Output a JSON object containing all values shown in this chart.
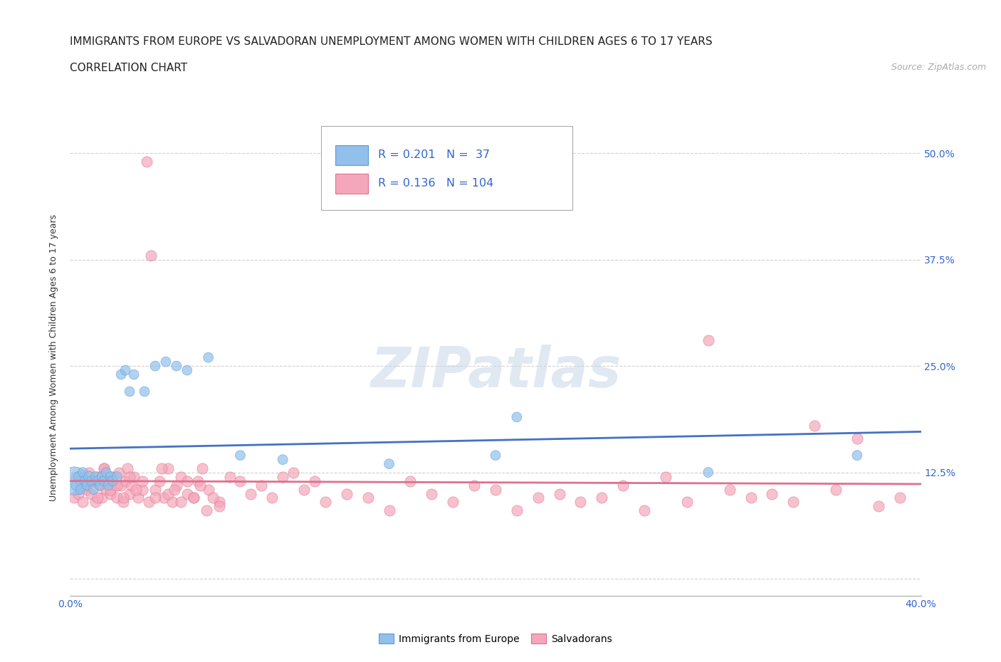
{
  "title_line1": "IMMIGRANTS FROM EUROPE VS SALVADORAN UNEMPLOYMENT AMONG WOMEN WITH CHILDREN AGES 6 TO 17 YEARS",
  "title_line2": "CORRELATION CHART",
  "source_text": "Source: ZipAtlas.com",
  "ylabel": "Unemployment Among Women with Children Ages 6 to 17 years",
  "xlim": [
    0.0,
    0.4
  ],
  "ylim": [
    -0.02,
    0.54
  ],
  "yticks": [
    0.0,
    0.125,
    0.25,
    0.375,
    0.5
  ],
  "ytick_labels": [
    "",
    "12.5%",
    "25.0%",
    "37.5%",
    "50.0%"
  ],
  "xticks": [
    0.0,
    0.05,
    0.1,
    0.15,
    0.2,
    0.25,
    0.3,
    0.35,
    0.4
  ],
  "xtick_labels": [
    "0.0%",
    "",
    "",
    "",
    "",
    "",
    "",
    "",
    "40.0%"
  ],
  "blue_color": "#91C0EA",
  "pink_color": "#F4A7BA",
  "blue_edge_color": "#5B9BD5",
  "pink_edge_color": "#E07090",
  "blue_line_color": "#4472C4",
  "pink_line_color": "#E07090",
  "R_blue": 0.201,
  "N_blue": 37,
  "R_pink": 0.136,
  "N_pink": 104,
  "legend_label_blue": "Immigrants from Europe",
  "legend_label_pink": "Salvadorans",
  "watermark": "ZIPatlas",
  "grid_color": "#CCCCCC",
  "background_color": "#FFFFFF",
  "blue_scatter_x": [
    0.002,
    0.003,
    0.004,
    0.005,
    0.006,
    0.007,
    0.008,
    0.009,
    0.01,
    0.011,
    0.012,
    0.013,
    0.014,
    0.015,
    0.016,
    0.017,
    0.018,
    0.019,
    0.02,
    0.022,
    0.024,
    0.026,
    0.028,
    0.03,
    0.035,
    0.04,
    0.045,
    0.05,
    0.055,
    0.065,
    0.08,
    0.1,
    0.15,
    0.2,
    0.21,
    0.3,
    0.37
  ],
  "blue_scatter_y": [
    0.115,
    0.11,
    0.12,
    0.105,
    0.125,
    0.115,
    0.11,
    0.12,
    0.115,
    0.105,
    0.12,
    0.115,
    0.11,
    0.12,
    0.115,
    0.125,
    0.11,
    0.12,
    0.115,
    0.12,
    0.24,
    0.245,
    0.22,
    0.24,
    0.22,
    0.25,
    0.255,
    0.25,
    0.245,
    0.26,
    0.145,
    0.14,
    0.135,
    0.145,
    0.19,
    0.125,
    0.145
  ],
  "blue_scatter_size": [
    800,
    120,
    100,
    100,
    100,
    100,
    100,
    120,
    100,
    100,
    100,
    100,
    100,
    100,
    100,
    100,
    100,
    100,
    100,
    100,
    100,
    100,
    100,
    100,
    100,
    100,
    100,
    100,
    100,
    100,
    100,
    100,
    100,
    100,
    100,
    100,
    100
  ],
  "pink_scatter_x": [
    0.002,
    0.003,
    0.004,
    0.005,
    0.006,
    0.007,
    0.008,
    0.009,
    0.01,
    0.011,
    0.012,
    0.013,
    0.014,
    0.015,
    0.016,
    0.017,
    0.018,
    0.019,
    0.02,
    0.021,
    0.022,
    0.023,
    0.024,
    0.025,
    0.026,
    0.027,
    0.028,
    0.029,
    0.03,
    0.032,
    0.034,
    0.036,
    0.038,
    0.04,
    0.042,
    0.044,
    0.046,
    0.048,
    0.05,
    0.052,
    0.055,
    0.058,
    0.06,
    0.062,
    0.065,
    0.07,
    0.075,
    0.08,
    0.085,
    0.09,
    0.095,
    0.1,
    0.105,
    0.11,
    0.115,
    0.12,
    0.13,
    0.14,
    0.15,
    0.16,
    0.17,
    0.18,
    0.19,
    0.2,
    0.21,
    0.22,
    0.23,
    0.24,
    0.25,
    0.26,
    0.27,
    0.28,
    0.29,
    0.3,
    0.31,
    0.32,
    0.33,
    0.34,
    0.35,
    0.36,
    0.37,
    0.38,
    0.39,
    0.01,
    0.013,
    0.016,
    0.019,
    0.022,
    0.025,
    0.028,
    0.031,
    0.034,
    0.037,
    0.04,
    0.043,
    0.046,
    0.049,
    0.052,
    0.055,
    0.058,
    0.061,
    0.064,
    0.067,
    0.07
  ],
  "pink_scatter_y": [
    0.095,
    0.12,
    0.1,
    0.115,
    0.09,
    0.11,
    0.105,
    0.125,
    0.1,
    0.115,
    0.09,
    0.12,
    0.11,
    0.095,
    0.13,
    0.105,
    0.115,
    0.1,
    0.12,
    0.11,
    0.095,
    0.125,
    0.11,
    0.09,
    0.115,
    0.13,
    0.1,
    0.11,
    0.12,
    0.095,
    0.105,
    0.49,
    0.38,
    0.105,
    0.115,
    0.095,
    0.13,
    0.09,
    0.11,
    0.12,
    0.1,
    0.095,
    0.115,
    0.13,
    0.105,
    0.09,
    0.12,
    0.115,
    0.1,
    0.11,
    0.095,
    0.12,
    0.125,
    0.105,
    0.115,
    0.09,
    0.1,
    0.095,
    0.08,
    0.115,
    0.1,
    0.09,
    0.11,
    0.105,
    0.08,
    0.095,
    0.1,
    0.09,
    0.095,
    0.11,
    0.08,
    0.12,
    0.09,
    0.28,
    0.105,
    0.095,
    0.1,
    0.09,
    0.18,
    0.105,
    0.165,
    0.085,
    0.095,
    0.115,
    0.095,
    0.13,
    0.105,
    0.11,
    0.095,
    0.12,
    0.105,
    0.115,
    0.09,
    0.095,
    0.13,
    0.1,
    0.105,
    0.09,
    0.115,
    0.095,
    0.11,
    0.08,
    0.095,
    0.085
  ]
}
